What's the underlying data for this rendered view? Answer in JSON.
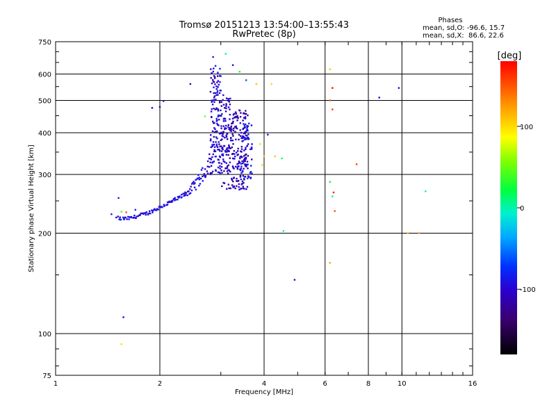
{
  "chart_data": {
    "type": "scatter",
    "title": "Tromsø 20151213 13:54:00–13:55:43",
    "subtitle": "RwPretec (8p)",
    "xlabel": "Frequency [MHz]",
    "ylabel": "Stationary phase Virtual Height [km]",
    "x_scale": "log",
    "y_scale": "log",
    "xlim": [
      1,
      16
    ],
    "ylim": [
      75,
      750
    ],
    "x_ticks": [
      {
        "value": 1,
        "label": "1"
      },
      {
        "value": 2,
        "label": "2"
      },
      {
        "value": 4,
        "label": "4"
      },
      {
        "value": 6,
        "label": "6"
      },
      {
        "value": 8,
        "label": "8"
      },
      {
        "value": 10,
        "label": "10"
      },
      {
        "value": 16,
        "label": "16"
      }
    ],
    "y_ticks": [
      {
        "value": 75,
        "label": "75"
      },
      {
        "value": 100,
        "label": "100"
      },
      {
        "value": 200,
        "label": "200"
      },
      {
        "value": 300,
        "label": "300"
      },
      {
        "value": 400,
        "label": "400"
      },
      {
        "value": 500,
        "label": "500"
      },
      {
        "value": 600,
        "label": "600"
      },
      {
        "value": 750,
        "label": "750"
      }
    ],
    "grid": true,
    "phases": {
      "title": "Phases",
      "line_o": "mean, sd,O: -96.6, 15.7",
      "line_x": "mean, sd,X:  86.6, 22.6"
    },
    "colorbar": {
      "label": "[deg]",
      "range": [
        -180,
        180
      ],
      "ticks": [
        {
          "value": 100,
          "label": "100"
        },
        {
          "value": 0,
          "label": "0"
        },
        {
          "value": -100,
          "label": "-100"
        }
      ]
    },
    "point_color_encodes": "phase [deg]",
    "trace_o_mode": [
      [
        1.5,
        222
      ],
      [
        1.55,
        221
      ],
      [
        1.6,
        221
      ],
      [
        1.65,
        222
      ],
      [
        1.7,
        224
      ],
      [
        1.75,
        226
      ],
      [
        1.8,
        228
      ],
      [
        1.85,
        230
      ],
      [
        1.9,
        233
      ],
      [
        1.95,
        236
      ],
      [
        2.0,
        239
      ],
      [
        2.05,
        242
      ],
      [
        2.1,
        245
      ],
      [
        2.15,
        248
      ],
      [
        2.2,
        251
      ],
      [
        2.25,
        254
      ],
      [
        2.3,
        257
      ],
      [
        2.35,
        261
      ],
      [
        2.4,
        265
      ],
      [
        2.45,
        270
      ],
      [
        2.5,
        276
      ],
      [
        2.55,
        282
      ],
      [
        2.6,
        289
      ],
      [
        2.65,
        298
      ],
      [
        2.7,
        308
      ],
      [
        2.75,
        320
      ],
      [
        2.8,
        335
      ],
      [
        2.85,
        352
      ],
      [
        2.9,
        372
      ],
      [
        2.95,
        395
      ]
    ],
    "spread_regions": [
      {
        "x": [
          2.8,
          3.0
        ],
        "y": [
          300,
          640
        ],
        "phase": -100,
        "density": 120
      },
      {
        "x": [
          3.0,
          3.2
        ],
        "y": [
          270,
          520
        ],
        "phase": -105,
        "density": 110
      },
      {
        "x": [
          3.2,
          3.6
        ],
        "y": [
          270,
          470
        ],
        "phase": -110,
        "density": 170
      },
      {
        "x": [
          3.4,
          3.7
        ],
        "y": [
          290,
          430
        ],
        "phase": -90,
        "density": 60
      }
    ],
    "scattered_points": [
      [
        1.52,
        255,
        -90
      ],
      [
        1.45,
        228,
        -80
      ],
      [
        1.55,
        232,
        40
      ],
      [
        1.6,
        231,
        150
      ],
      [
        1.57,
        112,
        -100
      ],
      [
        1.55,
        93,
        100
      ],
      [
        1.7,
        235,
        -80
      ],
      [
        1.9,
        475,
        -100
      ],
      [
        2.0,
        478,
        -120
      ],
      [
        2.05,
        498,
        -100
      ],
      [
        2.45,
        560,
        -100
      ],
      [
        2.7,
        448,
        50
      ],
      [
        2.85,
        675,
        -90
      ],
      [
        3.1,
        690,
        0
      ],
      [
        3.25,
        638,
        -100
      ],
      [
        3.4,
        610,
        20
      ],
      [
        3.55,
        575,
        -60
      ],
      [
        3.8,
        560,
        110
      ],
      [
        3.9,
        370,
        100
      ],
      [
        3.95,
        320,
        100
      ],
      [
        4.0,
        340,
        110
      ],
      [
        4.1,
        395,
        -100
      ],
      [
        4.2,
        560,
        100
      ],
      [
        4.3,
        340,
        110
      ],
      [
        4.5,
        335,
        20
      ],
      [
        4.55,
        203,
        0
      ],
      [
        4.9,
        145,
        -100
      ],
      [
        6.2,
        620,
        110
      ],
      [
        6.3,
        545,
        180
      ],
      [
        6.2,
        500,
        150
      ],
      [
        6.3,
        470,
        160
      ],
      [
        6.2,
        285,
        20
      ],
      [
        6.35,
        265,
        170
      ],
      [
        6.3,
        258,
        0
      ],
      [
        6.4,
        233,
        150
      ],
      [
        6.2,
        163,
        120
      ],
      [
        7.4,
        322,
        160
      ],
      [
        8.6,
        510,
        -100
      ],
      [
        9.8,
        545,
        -100
      ],
      [
        10.4,
        200,
        110
      ],
      [
        11.2,
        200,
        120
      ],
      [
        11.7,
        267,
        0
      ]
    ]
  }
}
